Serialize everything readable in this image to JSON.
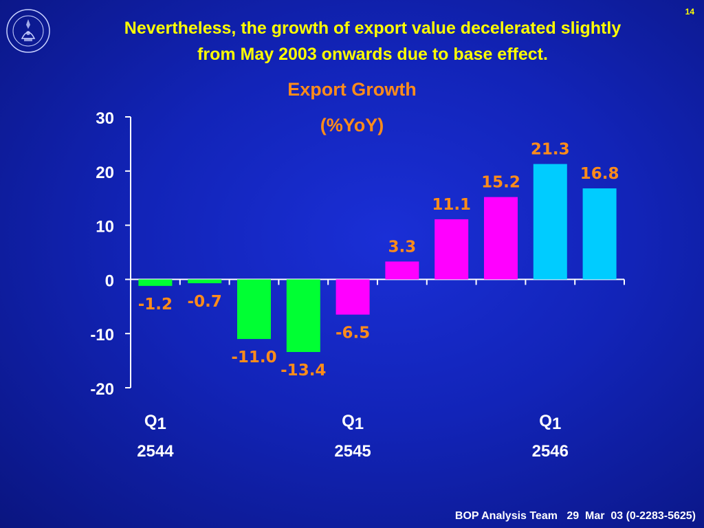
{
  "page_number": "14",
  "headline": {
    "line1": "Nevertheless, the growth of export value decelerated slightly",
    "line2": "from May 2003 onwards due to base effect."
  },
  "logo": {
    "icon": "bank-of-thailand-seal-icon"
  },
  "footer": "BOP Analysis Team   29  Mar  03 (0-2283-5625)",
  "colors": {
    "background": "#1224b8",
    "headline": "#ffff00",
    "chart_title": "#ff8c1a",
    "data_label": "#ff8c1a",
    "axis": "#ffffff",
    "green": "#00ff33",
    "magenta": "#ff00ff",
    "cyan": "#00ccff"
  },
  "chart_data": {
    "type": "bar",
    "title": "Export Growth",
    "subtitle": "(%YoY)",
    "ylim": [
      -20,
      30
    ],
    "yticks": [
      30,
      20,
      10,
      0,
      -10,
      -20
    ],
    "grid": false,
    "values": [
      -1.2,
      -0.7,
      -11.0,
      -13.4,
      -6.5,
      3.3,
      11.1,
      15.2,
      21.3,
      16.8
    ],
    "labels": [
      "-1.2",
      "-0.7",
      "-11.0",
      "-13.4",
      "-6.5",
      "3.3",
      "11.1",
      "15.2",
      "21.3",
      "16.8"
    ],
    "bar_colors": [
      "green",
      "green",
      "green",
      "green",
      "magenta",
      "magenta",
      "magenta",
      "magenta",
      "cyan",
      "cyan"
    ],
    "xgroups": [
      {
        "index": 0,
        "quarter": "Q",
        "quarter_num": "1",
        "year": "2544"
      },
      {
        "index": 4,
        "quarter": "Q",
        "quarter_num": "1",
        "year": "2545"
      },
      {
        "index": 8,
        "quarter": "Q",
        "quarter_num": "1",
        "year": "2546"
      }
    ]
  }
}
